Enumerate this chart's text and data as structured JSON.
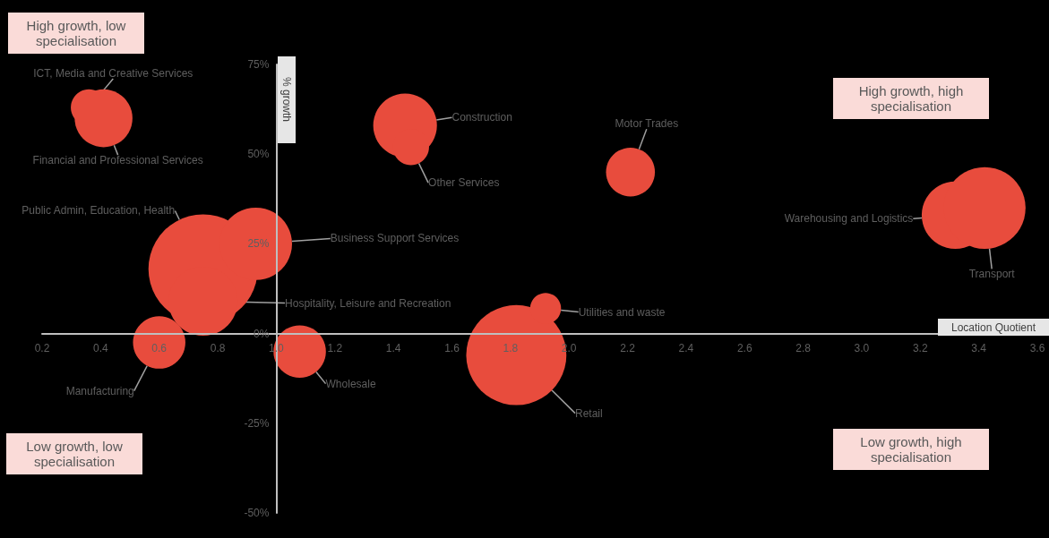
{
  "chart_data": {
    "type": "bubble",
    "xlabel": "Location Quotient",
    "ylabel": "% growth",
    "xlim": [
      0.2,
      3.6
    ],
    "xticks": [
      0.2,
      0.4,
      0.6,
      0.8,
      {
        "value": 1,
        "label": "1.0"
      },
      1.2,
      1.4,
      1.6,
      1.8,
      {
        "value": 2,
        "label": "2.0"
      },
      2.2,
      2.4,
      2.6,
      2.8,
      {
        "value": 3,
        "label": "3.0"
      },
      3.2,
      3.4,
      3.6
    ],
    "ylim": [
      -50,
      75
    ],
    "yticks": [
      {
        "value": -50,
        "label": "-50%"
      },
      {
        "value": -25,
        "label": "-25%"
      },
      {
        "value": 0,
        "label": "0%"
      },
      {
        "value": 25,
        "label": "25%"
      },
      {
        "value": 50,
        "label": "50%"
      },
      {
        "value": 75,
        "label": "75%"
      }
    ],
    "grid": false,
    "legend": false,
    "annotations": [
      "High growth, low specialisation",
      "High growth, high specialisation",
      "Low growth, low specialisation",
      "Low growth, high specialisation"
    ],
    "series": [
      {
        "name": "ICT, Media and Creative Services",
        "color": "#e84c3d",
        "x": [
          0.36
        ],
        "values": [
          63
        ],
        "sizes": [
          0.11
        ]
      },
      {
        "name": "Financial and Professional Services",
        "color": "#e84c3d",
        "x": [
          0.41
        ],
        "values": [
          60
        ],
        "sizes": [
          0.28
        ]
      },
      {
        "name": "Construction",
        "color": "#e84c3d",
        "x": [
          1.44
        ],
        "values": [
          58
        ],
        "sizes": [
          0.34
        ]
      },
      {
        "name": "Other Services",
        "color": "#e84c3d",
        "x": [
          1.46
        ],
        "values": [
          52
        ],
        "sizes": [
          0.11
        ]
      },
      {
        "name": "Motor Trades",
        "color": "#e84c3d",
        "x": [
          2.21
        ],
        "values": [
          45
        ],
        "sizes": [
          0.2
        ]
      },
      {
        "name": "Warehousing and Logistics",
        "color": "#e84c3d",
        "x": [
          3.32
        ],
        "values": [
          33
        ],
        "sizes": [
          0.38
        ]
      },
      {
        "name": "Transport",
        "color": "#e84c3d",
        "x": [
          3.42
        ],
        "values": [
          35
        ],
        "sizes": [
          0.56
        ]
      },
      {
        "name": "Public Admin, Education, Health",
        "color": "#e84c3d",
        "x": [
          0.75
        ],
        "values": [
          18
        ],
        "sizes": [
          1
        ]
      },
      {
        "name": "Business Support Services",
        "color": "#e84c3d",
        "x": [
          0.93
        ],
        "values": [
          25
        ],
        "sizes": [
          0.44
        ]
      },
      {
        "name": "Hospitality, Leisure and Recreation",
        "color": "#e84c3d",
        "x": [
          0.75
        ],
        "values": [
          9
        ],
        "sizes": [
          0.4
        ]
      },
      {
        "name": "Manufacturing",
        "color": "#e84c3d",
        "x": [
          0.6
        ],
        "values": [
          -2.5
        ],
        "sizes": [
          0.23
        ]
      },
      {
        "name": "Wholesale",
        "color": "#e84c3d",
        "x": [
          1.08
        ],
        "values": [
          -5
        ],
        "sizes": [
          0.23
        ]
      },
      {
        "name": "Retail",
        "color": "#e84c3d",
        "x": [
          1.82
        ],
        "values": [
          -6
        ],
        "sizes": [
          0.84
        ]
      },
      {
        "name": "Utilities and waste",
        "color": "#e84c3d",
        "x": [
          1.92
        ],
        "values": [
          7
        ],
        "sizes": [
          0.08
        ]
      }
    ]
  }
}
